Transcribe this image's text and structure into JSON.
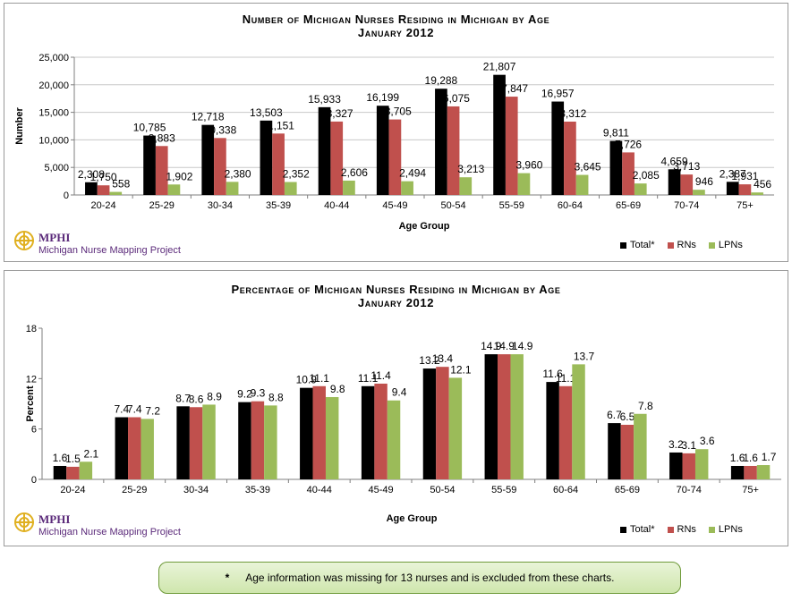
{
  "colors": {
    "total": "#000000",
    "rns": "#c0504d",
    "lpns": "#9bbb59"
  },
  "logo": {
    "name": "MPHI",
    "subtitle": "Michigan Nurse Mapping Project"
  },
  "legend": {
    "total": "Total*",
    "rns": "RNs",
    "lpns": "LPNs"
  },
  "footnote": {
    "marker": "*",
    "text": "Age information was missing for 13 nurses and is excluded from these charts."
  },
  "chart_data": [
    {
      "type": "bar",
      "title": "Number of Michigan Nurses Residing in Michigan by Age",
      "subtitle": "January 2012",
      "xlabel": "Age Group",
      "ylabel": "Number",
      "ylim": [
        0,
        25000
      ],
      "yticks": [
        "0",
        "5,000",
        "10,000",
        "15,000",
        "20,000",
        "25,000"
      ],
      "categories": [
        "20-24",
        "25-29",
        "30-34",
        "35-39",
        "40-44",
        "45-49",
        "50-54",
        "55-59",
        "60-64",
        "65-69",
        "70-74",
        "75+"
      ],
      "series": [
        {
          "name": "Total*",
          "values": [
            2308,
            10785,
            12718,
            13503,
            15933,
            16199,
            19288,
            21807,
            16957,
            9811,
            4659,
            2387
          ],
          "labels": [
            "2,308",
            "10,785",
            "12,718",
            "13,503",
            "15,933",
            "16,199",
            "19,288",
            "21,807",
            "16,957",
            "9,811",
            "4,659",
            "2,387"
          ]
        },
        {
          "name": "RNs",
          "values": [
            1750,
            8883,
            10338,
            11151,
            13327,
            13705,
            16075,
            17847,
            13312,
            7726,
            3713,
            1931
          ],
          "labels": [
            "1,750",
            "8,883",
            "10,338",
            "11,151",
            "13,327",
            "13,705",
            "16,075",
            "17,847",
            "13,312",
            "7,726",
            "3,713",
            "1,931"
          ]
        },
        {
          "name": "LPNs",
          "values": [
            558,
            1902,
            2380,
            2352,
            2606,
            2494,
            3213,
            3960,
            3645,
            2085,
            946,
            456
          ],
          "labels": [
            "558",
            "1,902",
            "2,380",
            "2,352",
            "2,606",
            "2,494",
            "3,213",
            "3,960",
            "3,645",
            "2,085",
            "946",
            "456"
          ]
        }
      ],
      "grid": true,
      "legend_position": "bottom-right"
    },
    {
      "type": "bar",
      "title": "Percentage of Michigan Nurses Residing in Michigan by Age",
      "subtitle": "January 2012",
      "xlabel": "Age Group",
      "ylabel": "Percent",
      "ylim": [
        0,
        18
      ],
      "yticks": [
        "0",
        "6",
        "12",
        "18"
      ],
      "categories": [
        "20-24",
        "25-29",
        "30-34",
        "35-39",
        "40-44",
        "45-49",
        "50-54",
        "55-59",
        "60-64",
        "65-69",
        "70-74",
        "75+"
      ],
      "series": [
        {
          "name": "Total*",
          "values": [
            1.6,
            7.4,
            8.7,
            9.2,
            10.9,
            11.1,
            13.2,
            14.9,
            11.6,
            6.7,
            3.2,
            1.6
          ],
          "labels": [
            "1.6",
            "7.4",
            "8.7",
            "9.2",
            "10.9",
            "11.1",
            "13.2",
            "14.9",
            "11.6",
            "6.7",
            "3.2",
            "1.6"
          ]
        },
        {
          "name": "RNs",
          "values": [
            1.5,
            7.4,
            8.6,
            9.3,
            11.1,
            11.4,
            13.4,
            14.9,
            11.1,
            6.5,
            3.1,
            1.6
          ],
          "labels": [
            "1.5",
            "7.4",
            "8.6",
            "9.3",
            "11.1",
            "11.4",
            "13.4",
            "14.9",
            "11.1",
            "6.5",
            "3.1",
            "1.6"
          ]
        },
        {
          "name": "LPNs",
          "values": [
            2.1,
            7.2,
            8.9,
            8.8,
            9.8,
            9.4,
            12.1,
            14.9,
            13.7,
            7.8,
            3.6,
            1.7
          ],
          "labels": [
            "2.1",
            "7.2",
            "8.9",
            "8.8",
            "9.8",
            "9.4",
            "12.1",
            "14.9",
            "13.7",
            "7.8",
            "3.6",
            "1.7"
          ]
        }
      ],
      "grid": false,
      "legend_position": "bottom-right"
    }
  ]
}
